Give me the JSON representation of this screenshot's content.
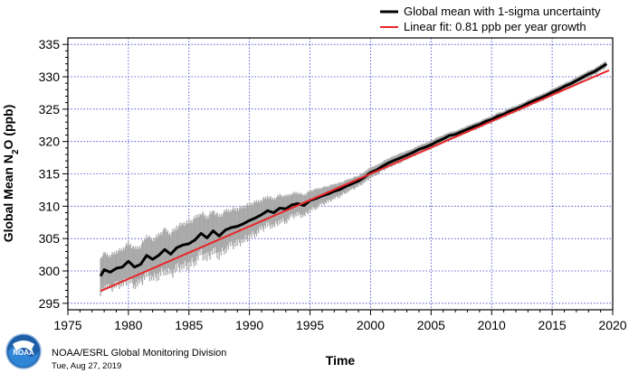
{
  "chart_data": {
    "type": "line",
    "title": "",
    "xlabel": "Time",
    "ylabel_main": "Global Mean N",
    "ylabel_sub": "2",
    "ylabel_tail": "O (ppb)",
    "xlim": [
      1975,
      2020
    ],
    "ylim": [
      294,
      336
    ],
    "xticks": [
      1975,
      1980,
      1985,
      1990,
      1995,
      2000,
      2005,
      2010,
      2015,
      2020
    ],
    "yticks": [
      295,
      300,
      305,
      310,
      315,
      320,
      325,
      330,
      335
    ],
    "grid": true,
    "legend_position": "top-right",
    "series": [
      {
        "name": "Global mean with 1-sigma uncertainty",
        "color": "#000000",
        "band_color": "#a9a9a9",
        "x": [
          1977.7,
          1978.0,
          1978.5,
          1979.0,
          1979.5,
          1980.0,
          1980.5,
          1981.0,
          1981.5,
          1982.0,
          1982.5,
          1983.0,
          1983.5,
          1984.0,
          1984.5,
          1985.0,
          1985.5,
          1986.0,
          1986.5,
          1987.0,
          1987.5,
          1988.0,
          1988.5,
          1989.0,
          1989.5,
          1990.0,
          1990.5,
          1991.0,
          1991.5,
          1992.0,
          1992.5,
          1993.0,
          1993.5,
          1994.0,
          1994.5,
          1995.0,
          1995.5,
          1996.0,
          1996.5,
          1997.0,
          1997.5,
          1998.0,
          1998.5,
          1999.0,
          1999.5,
          2000.0,
          2000.5,
          2001.0,
          2001.5,
          2002.0,
          2002.5,
          2003.0,
          2003.5,
          2004.0,
          2004.5,
          2005.0,
          2005.5,
          2006.0,
          2006.5,
          2007.0,
          2007.5,
          2008.0,
          2008.5,
          2009.0,
          2009.5,
          2010.0,
          2010.5,
          2011.0,
          2011.5,
          2012.0,
          2012.5,
          2013.0,
          2013.5,
          2014.0,
          2014.5,
          2015.0,
          2015.5,
          2016.0,
          2016.5,
          2017.0,
          2017.5,
          2018.0,
          2018.5,
          2019.0,
          2019.5
        ],
        "values": [
          299.2,
          300.2,
          299.8,
          300.4,
          300.6,
          301.5,
          300.6,
          301.0,
          302.4,
          301.8,
          302.4,
          303.3,
          302.6,
          303.6,
          304.0,
          304.2,
          304.8,
          305.8,
          305.1,
          306.2,
          305.4,
          306.3,
          306.7,
          306.9,
          307.3,
          307.8,
          308.2,
          308.7,
          309.3,
          309.0,
          309.7,
          309.6,
          310.2,
          310.4,
          310.1,
          310.9,
          311.2,
          311.6,
          311.9,
          312.3,
          312.6,
          313.1,
          313.5,
          313.9,
          314.5,
          315.2,
          315.6,
          316.2,
          316.7,
          317.1,
          317.5,
          317.9,
          318.3,
          318.8,
          319.1,
          319.5,
          320.0,
          320.4,
          320.9,
          321.1,
          321.5,
          321.9,
          322.3,
          322.6,
          323.1,
          323.4,
          323.9,
          324.2,
          324.7,
          325.0,
          325.4,
          325.9,
          326.3,
          326.7,
          327.1,
          327.6,
          328.0,
          328.5,
          328.9,
          329.4,
          329.9,
          330.4,
          330.8,
          331.4,
          332.0
        ],
        "sigma": [
          2.5,
          2.5,
          2.6,
          2.6,
          2.7,
          2.8,
          2.8,
          2.9,
          3.0,
          3.0,
          3.1,
          3.1,
          3.2,
          3.2,
          3.3,
          3.3,
          3.3,
          3.2,
          3.2,
          3.1,
          3.0,
          2.9,
          2.8,
          2.7,
          2.6,
          2.5,
          2.4,
          2.3,
          2.2,
          2.1,
          2.0,
          1.9,
          1.8,
          1.7,
          1.6,
          1.5,
          1.4,
          1.3,
          1.2,
          1.1,
          1.0,
          0.9,
          0.9,
          0.8,
          0.8,
          0.8,
          0.7,
          0.7,
          0.7,
          0.7,
          0.7,
          0.6,
          0.6,
          0.6,
          0.6,
          0.6,
          0.6,
          0.6,
          0.5,
          0.5,
          0.5,
          0.5,
          0.5,
          0.5,
          0.5,
          0.5,
          0.5,
          0.5,
          0.5,
          0.5,
          0.5,
          0.5,
          0.5,
          0.5,
          0.5,
          0.5,
          0.5,
          0.5,
          0.5,
          0.5,
          0.5,
          0.5,
          0.5,
          0.5,
          0.5
        ]
      },
      {
        "name": "Linear fit:  0.81 ppb per year growth",
        "color": "#e8262a",
        "x": [
          1977.7,
          2019.7
        ],
        "values": [
          296.9,
          331.0
        ]
      }
    ]
  },
  "logo_text": "NOAA",
  "credit": {
    "organization": "NOAA/ESRL Global Monitoring Division",
    "date": "Tue, Aug 27, 2019"
  }
}
